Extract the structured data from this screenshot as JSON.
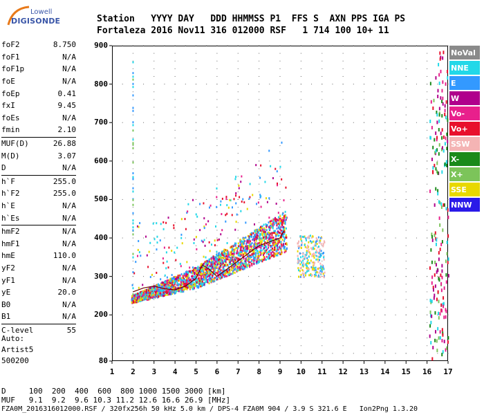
{
  "logo": {
    "line1": "Lowell",
    "line2": "DIGISONDE"
  },
  "header": {
    "line1": "Station   YYYY DAY   DDD HHMMSS P1  FFS S  AXN PPS IGA PS",
    "line2": "Fortaleza 2016 Nov11 316 012000 RSF   1 714 100 10+ 11"
  },
  "params": [
    {
      "name": "foF2",
      "value": "8.750"
    },
    {
      "name": "foF1",
      "value": "N/A"
    },
    {
      "name": "foF1p",
      "value": "N/A"
    },
    {
      "name": "foE",
      "value": "N/A"
    },
    {
      "name": "foEp",
      "value": "0.41"
    },
    {
      "name": "fxI",
      "value": "9.45"
    },
    {
      "name": "foEs",
      "value": "N/A"
    },
    {
      "name": "fmin",
      "value": "2.10"
    },
    {
      "sep": true
    },
    {
      "name": "MUF(D)",
      "value": "26.88"
    },
    {
      "name": "M(D)",
      "value": "3.07"
    },
    {
      "name": "D",
      "value": "N/A"
    },
    {
      "sep": true
    },
    {
      "name": "h`F",
      "value": "255.0"
    },
    {
      "name": "h`F2",
      "value": "255.0"
    },
    {
      "name": "h`E",
      "value": "N/A"
    },
    {
      "name": "h`Es",
      "value": "N/A"
    },
    {
      "sep": true
    },
    {
      "name": "hmF2",
      "value": "N/A"
    },
    {
      "name": "hmF1",
      "value": "N/A"
    },
    {
      "name": "hmE",
      "value": "110.0"
    },
    {
      "name": "yF2",
      "value": "N/A"
    },
    {
      "name": "yF1",
      "value": "N/A"
    },
    {
      "name": "yE",
      "value": "20.0"
    },
    {
      "name": "B0",
      "value": "N/A"
    },
    {
      "name": "B1",
      "value": "N/A"
    },
    {
      "sep": true
    },
    {
      "name": "C-level",
      "value": "55"
    }
  ],
  "autoscale": {
    "line1": "Auto:",
    "line2": "Artist5",
    "line3": "500200"
  },
  "legend": [
    {
      "label": "NoVal",
      "color": "#8a8a8a"
    },
    {
      "label": "NNE",
      "color": "#22d8e8"
    },
    {
      "label": "E",
      "color": "#3399ff"
    },
    {
      "label": "W",
      "color": "#b0008c"
    },
    {
      "label": "Vo-",
      "color": "#e8208c"
    },
    {
      "label": "Vo+",
      "color": "#e8102c"
    },
    {
      "label": "SSW",
      "color": "#f4b4b4"
    },
    {
      "label": "X-",
      "color": "#1a8a1a"
    },
    {
      "label": "X+",
      "color": "#7cc45a"
    },
    {
      "label": "SSE",
      "color": "#e8d800"
    },
    {
      "label": "NNW",
      "color": "#2a1ae8"
    }
  ],
  "yaxis": {
    "min": 80,
    "max": 900,
    "ticks": [
      "900",
      "800",
      "700",
      "600",
      "500",
      "400",
      "300",
      "200",
      "80"
    ]
  },
  "xaxis": {
    "min": 1,
    "max": 17,
    "ticks": [
      "1",
      "2",
      "3",
      "4",
      "5",
      "6",
      "7",
      "8",
      "9",
      "10",
      "11",
      "12",
      "13",
      "14",
      "15",
      "16",
      "17"
    ]
  },
  "footer": {
    "line1": "D     100  200  400  600  800 1000 1500 3000 [km]",
    "line2": "MUF   9.1  9.2  9.6 10.3 11.2 12.6 16.6 26.9 [MHz]",
    "line3": "FZA0M_2016316012000.RSF / 320fx256h 50 kHz 5.0 km / DPS-4 FZA0M 904 / 3.9 S 321.6 E   Ion2Png 1.3.20"
  },
  "chart_data": {
    "type": "scatter",
    "title": "",
    "xlabel": "",
    "ylabel": "",
    "xlim": [
      1,
      17
    ],
    "ylim": [
      80,
      900
    ],
    "grid": true,
    "traces": [
      {
        "points": [
          [
            2,
            260
          ],
          [
            2.5,
            270
          ],
          [
            3,
            275
          ],
          [
            3.5,
            268
          ],
          [
            4,
            265
          ],
          [
            4.5,
            275
          ],
          [
            5,
            295
          ],
          [
            5.3,
            330
          ],
          [
            5.6,
            320
          ],
          [
            6,
            300
          ],
          [
            6.5,
            320
          ],
          [
            7,
            340
          ],
          [
            7.5,
            360
          ],
          [
            8,
            380
          ],
          [
            8.5,
            390
          ],
          [
            9,
            400
          ],
          [
            9.2,
            420
          ]
        ]
      }
    ]
  }
}
